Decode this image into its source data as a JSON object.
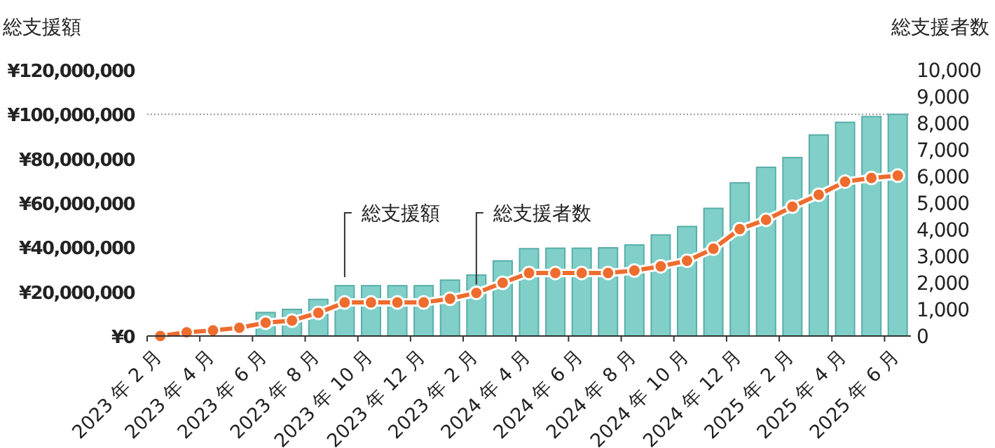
{
  "chart_data": {
    "type": "bar",
    "ylabel": "総支援額",
    "y2label": "総支援者数",
    "categories": [
      "2023 年 2 月",
      null,
      "2023 年 4 月",
      null,
      "2023 年 6 月",
      null,
      "2023 年 8 月",
      null,
      "2023 年 10 月",
      null,
      "2023 年 12 月",
      null,
      "2023 年 2 月",
      null,
      "2024 年 4 月",
      null,
      "2024 年 6 月",
      null,
      "2024 年 8 月",
      null,
      "2024 年 10 月",
      null,
      "2024 年 12 月",
      null,
      "2025 年 2 月",
      null,
      "2025 年 4 月",
      null,
      "2025 年 6 月"
    ],
    "series": [
      {
        "name": "総支援額",
        "color": "#80cfc9",
        "values": [
          0,
          300000,
          null,
          null,
          10600000,
          12000000,
          16500000,
          22700000,
          22700000,
          22700000,
          22700000,
          25200000,
          27500000,
          33900000,
          39400000,
          39600000,
          39600000,
          39800000,
          41100000,
          45600000,
          49400000,
          57600000,
          69100000,
          76100000,
          80500000,
          90700000,
          96400000,
          99000000,
          100000000
        ]
      },
      {
        "name": "総支援者数",
        "type": "line",
        "axis": "y2",
        "color": "#ee6c2d",
        "marker": "circle",
        "values": [
          0,
          140,
          210,
          310,
          500,
          580,
          870,
          1260,
          1260,
          1260,
          1260,
          1400,
          1620,
          2000,
          2370,
          2370,
          2370,
          2370,
          2460,
          2620,
          2830,
          3280,
          4020,
          4370,
          4860,
          5310,
          5800,
          5940,
          6030
        ]
      }
    ],
    "ylim": [
      0,
      120000000
    ],
    "yticks": [
      {
        "value": 0,
        "label": "¥0"
      },
      {
        "value": 20000000,
        "label": "¥20,000,000"
      },
      {
        "value": 40000000,
        "label": "¥40,000,000"
      },
      {
        "value": 60000000,
        "label": "¥60,000,000"
      },
      {
        "value": 80000000,
        "label": "¥80,000,000"
      },
      {
        "value": 100000000,
        "label": "¥100,000,000"
      },
      {
        "value": 120000000,
        "label": "¥120,000,000"
      }
    ],
    "y2lim": [
      0,
      10000
    ],
    "y2ticks": [
      0,
      {
        "value": 1000,
        "label": "1,000"
      },
      {
        "value": 2000,
        "label": "2,000"
      },
      {
        "value": 3000,
        "label": "3,000"
      },
      {
        "value": 4000,
        "label": "4,000"
      },
      {
        "value": 5000,
        "label": "5,000"
      },
      {
        "value": 6000,
        "label": "6,000"
      },
      {
        "value": 7000,
        "label": "7,000"
      },
      {
        "value": 8000,
        "label": "8,000"
      },
      {
        "value": 9000,
        "label": "9,000"
      },
      {
        "value": 10000,
        "label": "10,000"
      }
    ],
    "ref_lines": [
      {
        "axis": "y",
        "value": 100000000,
        "color": "#999999",
        "line_style": "dotted"
      }
    ]
  }
}
